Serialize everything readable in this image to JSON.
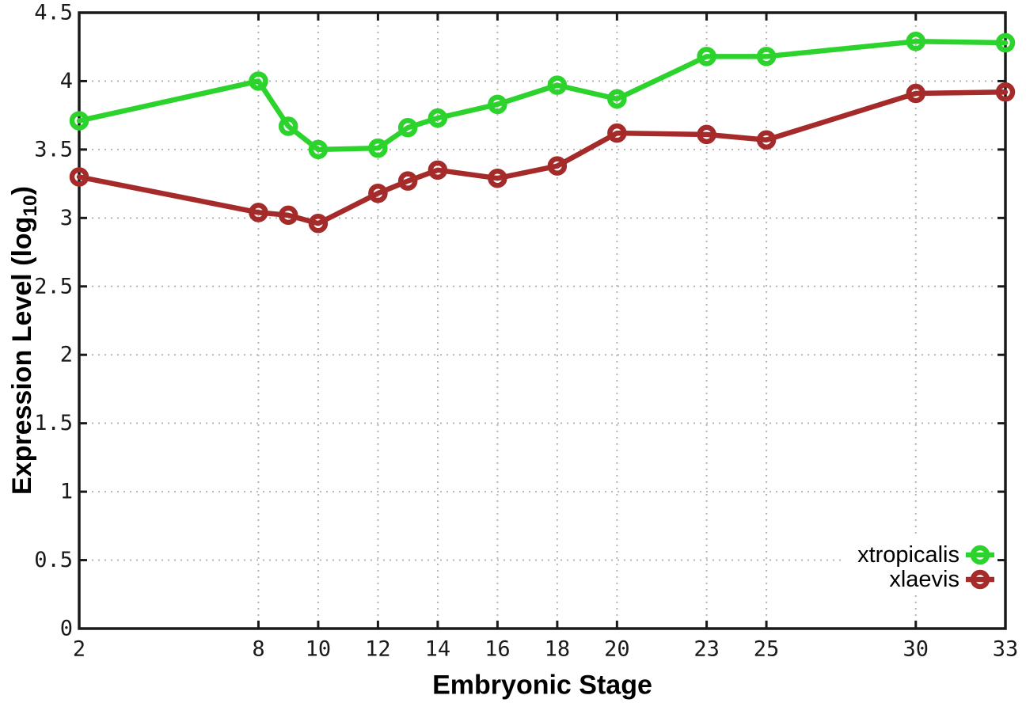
{
  "chart_data": {
    "type": "line",
    "xlabel": "Embryonic Stage",
    "ylabel": "Expression Level (log10)",
    "ylabel_main": "Expression Level (log",
    "ylabel_sub": "10",
    "ylabel_close": ")",
    "xlim": [
      2,
      33
    ],
    "ylim": [
      0,
      4.5
    ],
    "x_ticks": [
      2,
      8,
      10,
      12,
      14,
      16,
      18,
      20,
      23,
      25,
      30,
      33
    ],
    "y_ticks": [
      0,
      0.5,
      1,
      1.5,
      2,
      2.5,
      3,
      3.5,
      4,
      4.5
    ],
    "grid": true,
    "legend_position": "bottom-right",
    "marker": "open-circle",
    "x": [
      2,
      8,
      9,
      10,
      12,
      13,
      14,
      16,
      18,
      20,
      23,
      25,
      30,
      33
    ],
    "series": [
      {
        "name": "xtropicalis",
        "color": "#2cd32c",
        "values": [
          3.71,
          4.0,
          3.67,
          3.5,
          3.51,
          3.66,
          3.73,
          3.83,
          3.97,
          3.87,
          4.18,
          4.18,
          4.29,
          4.28
        ]
      },
      {
        "name": "xlaevis",
        "color": "#a52a2a",
        "values": [
          3.3,
          3.04,
          3.02,
          2.96,
          3.18,
          3.27,
          3.35,
          3.29,
          3.38,
          3.62,
          3.61,
          3.57,
          3.91,
          3.92
        ]
      }
    ],
    "colors": {
      "grid": "#b5b5b5",
      "axis": "#1a1a1a",
      "tick_label": "#1a1a1a",
      "background": "#ffffff"
    }
  }
}
